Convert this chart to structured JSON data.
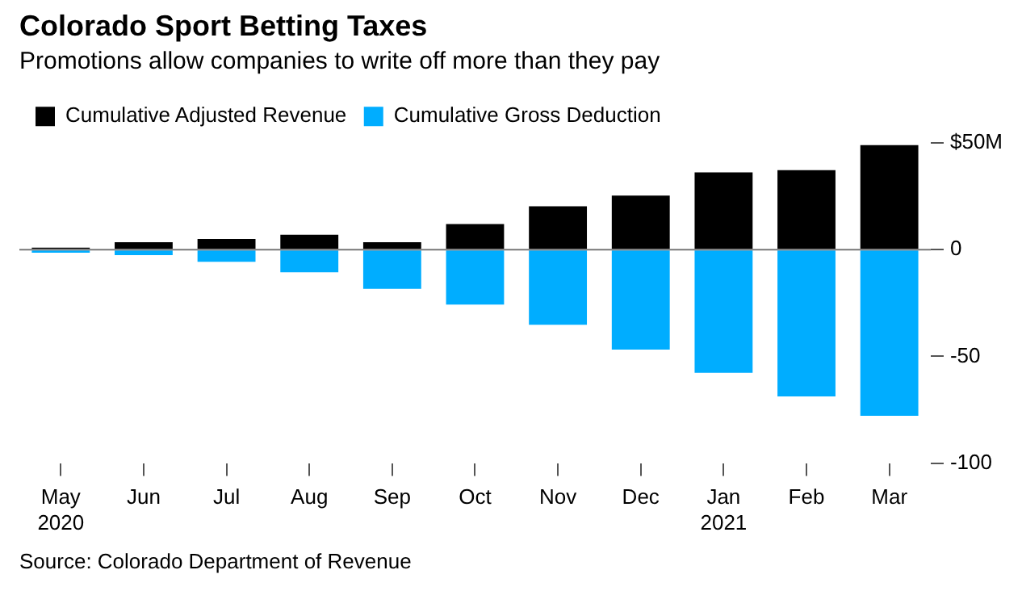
{
  "chart_data": {
    "type": "bar",
    "title": "Colorado Sport Betting Taxes",
    "subtitle": "Promotions allow companies to write off more than they pay",
    "categories": [
      "May 2020",
      "Jun",
      "Jul",
      "Aug",
      "Sep",
      "Oct",
      "Nov",
      "Dec",
      "Jan 2021",
      "Feb",
      "Mar"
    ],
    "series": [
      {
        "name": "Cumulative Adjusted Revenue",
        "color": "#000000",
        "values": [
          1,
          3.5,
          5,
          7,
          3.5,
          12,
          20.4,
          25.4,
          36.3,
          37.3,
          49
        ]
      },
      {
        "name": "Cumulative Gross Deduction",
        "color": "#00adff",
        "values": [
          -1.4,
          -2.5,
          -5.6,
          -10.6,
          -18.3,
          -25.7,
          -35.2,
          -46.8,
          -57.7,
          -68.7,
          -77.8
        ]
      }
    ],
    "stacked": true,
    "ylim": [
      -100,
      50
    ],
    "yticks": [
      {
        "value": 50,
        "label": "$50M"
      },
      0,
      -50,
      -100
    ],
    "ref_lines": [
      {
        "axis": "y",
        "value": 0,
        "color": "#777777"
      }
    ],
    "grid": false,
    "legend": "top left",
    "annotations": [
      "Source: Colorado Department of Revenue"
    ]
  }
}
